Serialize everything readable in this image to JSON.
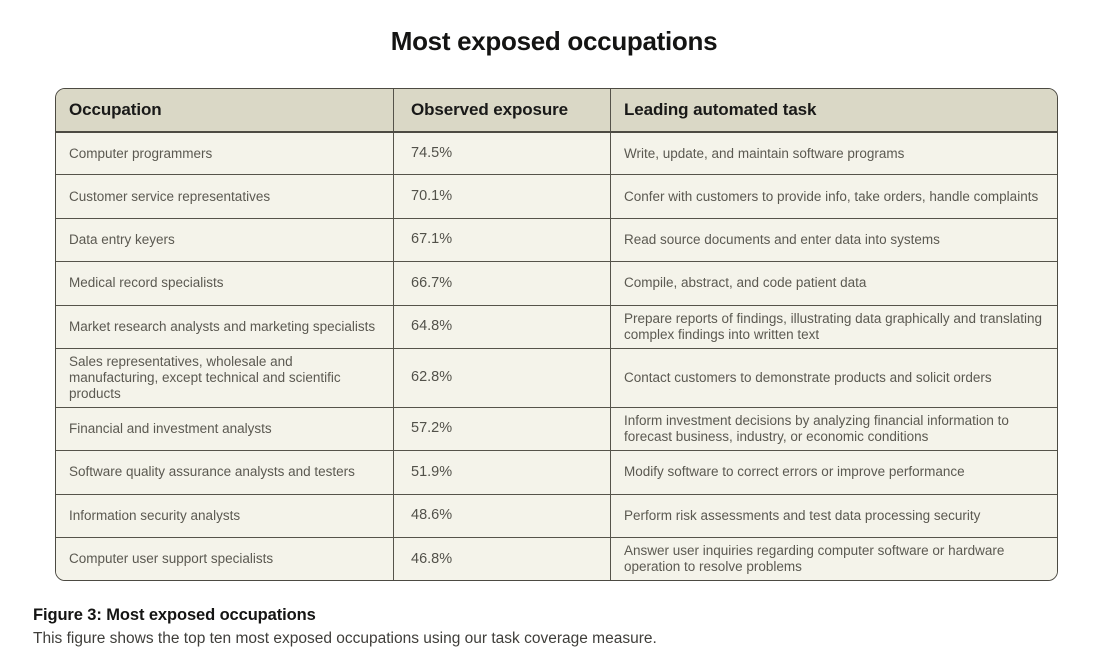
{
  "title": "Most exposed occupations",
  "chart_data": {
    "type": "table",
    "title": "Most exposed occupations",
    "columns": [
      "Occupation",
      "Observed exposure",
      "Leading automated task"
    ],
    "rows": [
      [
        "Computer programmers",
        "74.5%",
        "Write, update, and maintain software programs"
      ],
      [
        "Customer service representatives",
        "70.1%",
        "Confer with customers to provide info, take orders, handle complaints"
      ],
      [
        "Data entry keyers",
        "67.1%",
        "Read source documents and enter data into systems"
      ],
      [
        "Medical record specialists",
        "66.7%",
        "Compile, abstract, and code patient data"
      ],
      [
        "Market research analysts and marketing specialists",
        "64.8%",
        "Prepare reports of findings, illustrating data graphically and translating complex findings into written text"
      ],
      [
        "Sales representatives, wholesale and manufacturing, except technical and scientific products",
        "62.8%",
        "Contact customers to demonstrate products and solicit orders"
      ],
      [
        "Financial and investment analysts",
        "57.2%",
        "Inform investment decisions by analyzing financial information to forecast business, industry, or economic conditions"
      ],
      [
        "Software quality assurance analysts and testers",
        "51.9%",
        "Modify software to correct errors or improve performance"
      ],
      [
        "Information security analysts",
        "48.6%",
        "Perform risk assessments and test data processing security"
      ],
      [
        "Computer user support specialists",
        "46.8%",
        "Answer user inquiries regarding computer software or hardware operation to resolve problems"
      ]
    ],
    "exposure_values_percent": [
      74.5,
      70.1,
      67.1,
      66.7,
      64.8,
      62.8,
      57.2,
      51.9,
      48.6,
      46.8
    ]
  },
  "caption": {
    "title": "Figure 3: Most exposed occupations",
    "description": "This figure shows the top ten most exposed occupations using our task coverage measure."
  },
  "colors": {
    "header_background": "#dad8c6",
    "row_background": "#f4f3ea",
    "border": "#4c4a42",
    "body_text": "#5b5951",
    "heading_text": "#141413"
  }
}
